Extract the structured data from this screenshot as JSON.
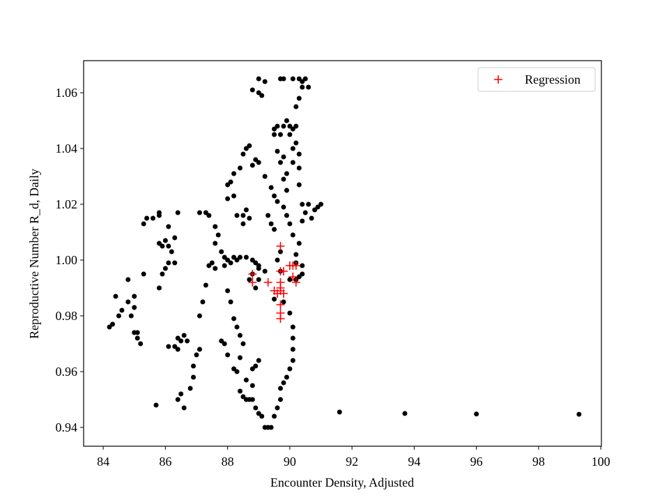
{
  "chart_data": {
    "type": "scatter",
    "xlabel": "Encounter Density, Adjusted",
    "ylabel": "Reproductive Number R_d, Daily",
    "xlim": [
      83.37,
      100.02
    ],
    "ylim": [
      0.93325,
      1.0715
    ],
    "xticks": [
      84,
      86,
      88,
      90,
      92,
      94,
      96,
      98,
      100
    ],
    "yticks": [
      0.94,
      0.96,
      0.98,
      {
        "value": 1,
        "label": "1.00"
      },
      1.02,
      1.04,
      1.06
    ],
    "legend": "upper right",
    "series": [
      {
        "color": "#000000",
        "marker": "circle",
        "x": [
          84.2,
          84.3,
          84.4,
          84.5,
          84.6,
          84.8,
          84.8,
          84.9,
          85.0,
          85.0,
          85.0,
          85.1,
          85.1,
          85.2,
          85.3,
          85.3,
          85.4,
          85.6,
          85.8,
          85.8,
          85.8,
          85.9,
          86.0,
          86.1,
          86.2,
          86.1,
          86.0,
          85.8,
          85.9,
          86.1,
          86.3,
          86.4,
          86.3,
          85.7,
          86.4,
          86.5,
          86.6,
          86.1,
          86.3,
          86.4,
          86.5,
          86.6,
          86.7,
          86.4,
          86.8,
          86.9,
          86.9,
          87.0,
          87.1,
          87.1,
          87.2,
          87.3,
          87.4,
          87.1,
          87.3,
          87.4,
          87.6,
          87.7,
          87.6,
          87.5,
          87.6,
          87.8,
          87.9,
          88.0,
          88.1,
          88.2,
          88.3,
          88.4,
          88.6,
          88.8,
          88.9,
          89.0,
          87.9,
          88.0,
          88.1,
          88.2,
          88.3,
          88.4,
          88.5,
          88.4,
          88.3,
          88.4,
          88.5,
          88.6,
          88.8,
          88.7,
          87.8,
          87.9,
          88.0,
          88.2,
          89.0,
          89.1,
          89.2,
          89.3,
          89.4,
          89.5,
          89.6,
          89.7,
          89.7,
          89.8,
          89.9,
          90.0,
          90.1,
          90.1,
          90.1,
          90.1,
          90.0,
          89.8,
          89.0,
          88.9,
          88.8,
          88.8,
          88.6,
          88.9,
          88.7,
          88.8,
          89.0,
          88.5,
          88.6,
          88.7,
          88.5,
          88.3,
          88.2,
          88.1,
          88.0,
          88.0,
          88.2,
          88.4,
          88.5,
          88.6,
          88.7,
          88.8,
          88.9,
          89.0,
          89.2,
          89.4,
          89.5,
          89.3,
          89.4,
          89.5,
          89.7,
          89.6,
          89.7,
          89.5,
          89.5,
          89.6,
          89.8,
          90.0,
          90.1,
          90.0,
          89.7,
          89.6,
          89.7,
          89.9,
          89.8,
          89.6,
          89.8,
          89.9,
          90.0,
          90.1,
          90.2,
          90.2,
          90.3,
          90.2,
          90.0,
          90.3,
          90.4,
          90.4,
          90.3,
          90.3,
          90.3,
          90.2,
          90.2,
          90.2,
          90.3,
          90.4,
          90.3,
          90.1,
          89.8,
          89.7,
          90.5,
          90.6,
          90.4,
          90.5,
          90.6,
          90.7,
          90.8,
          90.9,
          91.0,
          89.0,
          89.0,
          89.1,
          89.2,
          88.8,
          89.9,
          90.1,
          90.1,
          89.8,
          89.9,
          90.4,
          90.4,
          89.0,
          89.2,
          88.9,
          89.5,
          91.6,
          93.7,
          96.0,
          99.3
        ],
        "values": [
          0.976,
          0.977,
          0.987,
          0.98,
          0.982,
          0.993,
          0.985,
          0.98,
          0.987,
          0.983,
          0.974,
          0.974,
          0.972,
          0.97,
          0.995,
          1.013,
          1.015,
          1.015,
          1.017,
          1.016,
          1.006,
          1.005,
          1.007,
          1.005,
          1.003,
          0.999,
          0.997,
          0.99,
          0.995,
          1.012,
          1.008,
          1.017,
          0.999,
          0.948,
          0.95,
          0.952,
          0.947,
          0.969,
          0.969,
          0.972,
          0.971,
          0.973,
          0.971,
          0.968,
          0.954,
          0.958,
          0.962,
          0.966,
          0.968,
          0.98,
          0.985,
          0.991,
          0.998,
          1.017,
          1.017,
          1.016,
          1.012,
          1.009,
          1.006,
          0.999,
          0.997,
          1.003,
          1.001,
          1.0,
          0.999,
          1.001,
          1.0,
          1.001,
          1.001,
          1.0,
          0.999,
          0.998,
          0.998,
          0.989,
          0.985,
          0.979,
          0.976,
          0.973,
          0.97,
          0.965,
          0.96,
          0.953,
          0.951,
          0.95,
          0.95,
          0.95,
          0.971,
          0.97,
          0.966,
          0.961,
          0.945,
          0.944,
          0.94,
          0.94,
          0.94,
          0.944,
          0.947,
          0.95,
          0.954,
          0.956,
          0.958,
          0.961,
          0.964,
          0.968,
          0.972,
          0.976,
          0.981,
          0.985,
          0.964,
          0.962,
          0.961,
          0.955,
          0.957,
          0.947,
          0.993,
          0.995,
          0.997,
          1.016,
          1.018,
          1.015,
          1.013,
          1.016,
          1.023,
          1.028,
          1.027,
          1.022,
          1.031,
          1.033,
          1.038,
          1.04,
          1.041,
          1.034,
          1.036,
          1.035,
          1.03,
          1.026,
          1.023,
          1.016,
          1.013,
          1.011,
          1.003,
          1.0,
          0.996,
          1.045,
          1.047,
          1.048,
          1.048,
          1.048,
          1.047,
          1.045,
          1.045,
          1.039,
          1.035,
          1.031,
          1.029,
          1.021,
          1.019,
          1.016,
          1.013,
          1.009,
          1.002,
          0.999,
          0.994,
          0.993,
          0.993,
          1.006,
          1.014,
          1.02,
          1.027,
          1.033,
          1.038,
          1.042,
          1.048,
          1.055,
          1.058,
          1.062,
          1.065,
          1.065,
          1.065,
          1.065,
          1.065,
          1.062,
          1.064,
          1.017,
          1.02,
          1.015,
          1.018,
          1.019,
          1.02,
          1.06,
          1.065,
          1.059,
          1.064,
          1.061,
          1.05,
          1.04,
          1.035,
          1.037,
          1.025,
          0.998,
          0.995,
          0.993,
          0.996,
          0.99,
          0.986,
          0.9455,
          0.945,
          0.9448,
          0.9447
        ]
      },
      {
        "name": "Regression",
        "color": "#ff0000",
        "marker": "plus",
        "x": [
          89.7,
          89.7,
          89.8,
          90.0,
          90.1,
          90.2,
          90.1,
          90.2,
          88.8,
          88.8,
          89.7,
          89.7,
          89.7,
          89.6,
          89.8,
          89.5,
          89.7,
          89.7,
          89.7,
          89.3
        ],
        "values": [
          1.005,
          0.996,
          0.996,
          0.998,
          0.998,
          0.998,
          0.994,
          0.992,
          0.995,
          0.992,
          0.992,
          0.99,
          0.989,
          0.988,
          0.988,
          0.989,
          0.984,
          0.981,
          0.979,
          0.992
        ]
      }
    ]
  }
}
